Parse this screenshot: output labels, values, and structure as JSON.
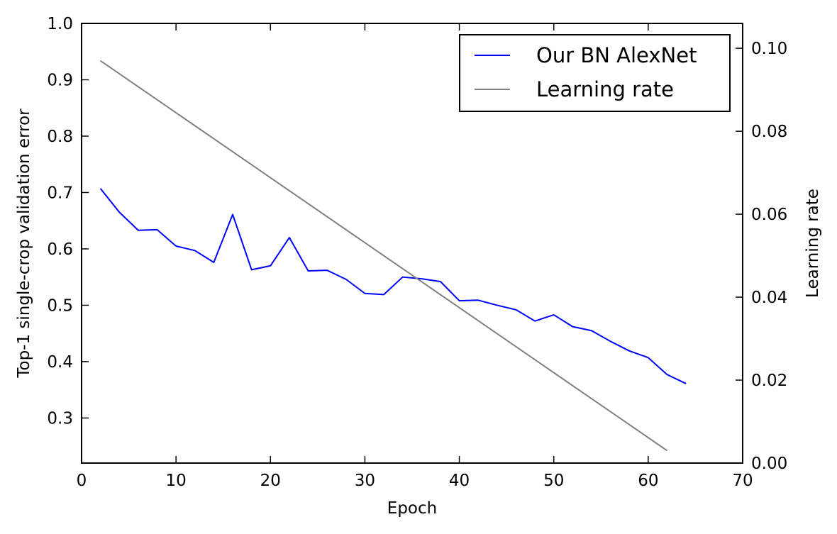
{
  "chart_data": {
    "type": "line",
    "xlabel": "Epoch",
    "ylabel": "Top-1 single-crop validation error",
    "y2label": "Learning rate",
    "xlim": [
      0,
      70
    ],
    "ylim": [
      0.22,
      1.0
    ],
    "y2lim": [
      0.0,
      0.106
    ],
    "x_ticks": [
      0,
      10,
      20,
      30,
      40,
      50,
      60,
      70
    ],
    "y_ticks": [
      0.3,
      0.4,
      0.5,
      0.6,
      0.7,
      0.8,
      0.9,
      1.0
    ],
    "y2_ticks": [
      0.0,
      0.02,
      0.04,
      0.06,
      0.08,
      0.1
    ],
    "x_tick_labels": [
      "0",
      "10",
      "20",
      "30",
      "40",
      "50",
      "60",
      "70"
    ],
    "y_tick_labels": [
      "0.3",
      "0.4",
      "0.5",
      "0.6",
      "0.7",
      "0.8",
      "0.9",
      "1.0"
    ],
    "y2_tick_labels": [
      "0.00",
      "0.02",
      "0.04",
      "0.06",
      "0.08",
      "0.10"
    ],
    "grid": false,
    "legend_position": "top-right",
    "series": [
      {
        "name": "Our BN AlexNet",
        "axis": "left",
        "color": "#0000ff",
        "x": [
          2,
          4,
          6,
          8,
          10,
          12,
          14,
          16,
          18,
          20,
          22,
          24,
          26,
          28,
          30,
          32,
          34,
          36,
          38,
          40,
          42,
          44,
          46,
          48,
          50,
          52,
          54,
          56,
          58,
          60,
          62,
          64
        ],
        "values": [
          0.707,
          0.665,
          0.633,
          0.634,
          0.605,
          0.597,
          0.576,
          0.661,
          0.563,
          0.57,
          0.62,
          0.561,
          0.562,
          0.546,
          0.521,
          0.519,
          0.55,
          0.547,
          0.542,
          0.508,
          0.509,
          0.5,
          0.492,
          0.472,
          0.483,
          0.462,
          0.455,
          0.436,
          0.419,
          0.407,
          0.377,
          0.361
        ]
      },
      {
        "name": "Learning rate",
        "axis": "right",
        "color": "#808080",
        "x": [
          2,
          62
        ],
        "values": [
          0.097,
          0.003
        ]
      }
    ]
  }
}
